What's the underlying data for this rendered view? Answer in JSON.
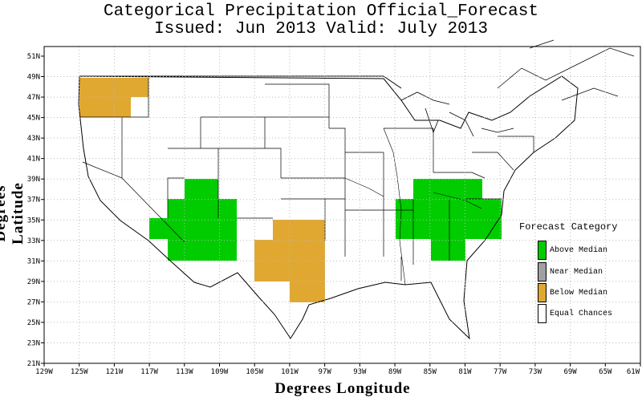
{
  "title_line1": "Categorical Precipitation Official_Forecast",
  "title_line2": "Issued: Jun 2013 Valid: July 2013",
  "xlabel": "Degrees Longitude",
  "ylabel": "Degrees Latitude",
  "x_ticks": [
    "129W",
    "125W",
    "121W",
    "117W",
    "113W",
    "109W",
    "105W",
    "101W",
    "97W",
    "93W",
    "89W",
    "85W",
    "81W",
    "77W",
    "73W",
    "69W",
    "65W",
    "61W"
  ],
  "y_ticks": [
    "51N",
    "49N",
    "47N",
    "45N",
    "43N",
    "41N",
    "39N",
    "37N",
    "35N",
    "33N",
    "31N",
    "29N",
    "27N",
    "25N",
    "23N",
    "21N"
  ],
  "legend": {
    "title": "Forecast Category",
    "items": [
      {
        "label": "Above Median",
        "color": "#00cc00"
      },
      {
        "label": "Near Median",
        "color": "#a0a0a0"
      },
      {
        "label": "Below Median",
        "color": "#e0a830"
      },
      {
        "label": "Equal Chances",
        "color": "#ffffff"
      }
    ]
  },
  "colors": {
    "above": "#00cc00",
    "below": "#e0a830",
    "grid": "#bbbbbb"
  }
}
